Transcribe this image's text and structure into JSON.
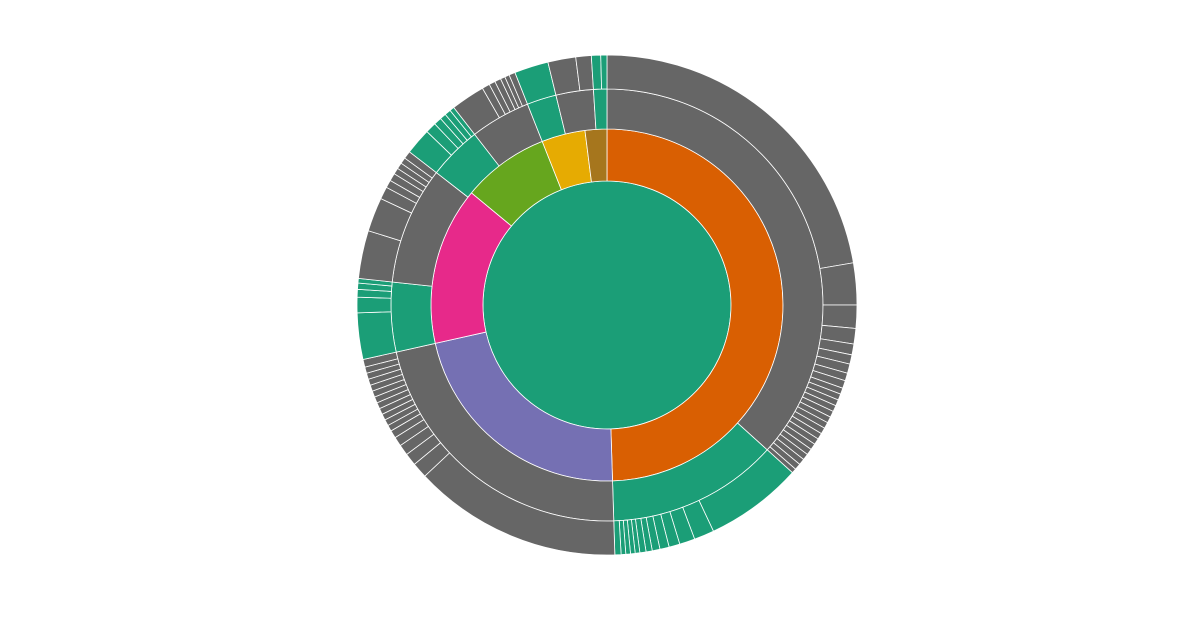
{
  "chart_data": {
    "type": "sunburst",
    "title": "",
    "colors": {
      "center": "#1b9e77",
      "orange": "#d95f02",
      "purple": "#7570b3",
      "pink": "#e7298a",
      "lime": "#66a61e",
      "yellow": "#e6ab02",
      "brown": "#a6761d",
      "gray": "#666666",
      "green": "#1b9e77"
    },
    "levels": [
      [
        {
          "start": 0,
          "end": 100,
          "color": "center"
        }
      ],
      [
        {
          "start": 0.0,
          "end": 49.5,
          "color": "orange"
        },
        {
          "start": 49.5,
          "end": 71.5,
          "color": "purple"
        },
        {
          "start": 71.5,
          "end": 86.0,
          "color": "pink"
        },
        {
          "start": 86.0,
          "end": 94.0,
          "color": "lime"
        },
        {
          "start": 94.0,
          "end": 98.0,
          "color": "yellow"
        },
        {
          "start": 98.0,
          "end": 100.0,
          "color": "brown"
        }
      ],
      [
        {
          "start": 0.0,
          "end": 36.7,
          "color": "gray"
        },
        {
          "start": 36.7,
          "end": 49.5,
          "color": "green"
        },
        {
          "start": 49.5,
          "end": 71.5,
          "color": "gray"
        },
        {
          "start": 71.5,
          "end": 76.7,
          "color": "green"
        },
        {
          "start": 76.7,
          "end": 85.5,
          "color": "gray"
        },
        {
          "start": 85.5,
          "end": 89.5,
          "color": "green"
        },
        {
          "start": 89.5,
          "end": 94.0,
          "color": "gray"
        },
        {
          "start": 94.0,
          "end": 96.2,
          "color": "green"
        },
        {
          "start": 96.2,
          "end": 99.0,
          "color": "gray"
        },
        {
          "start": 99.0,
          "end": 100.0,
          "color": "green"
        }
      ],
      [
        {
          "start": 0.0,
          "end": 22.3,
          "color": "gray"
        },
        {
          "start": 22.3,
          "end": 25.0,
          "color": "gray"
        },
        {
          "start": 25.0,
          "end": 26.5,
          "color": "gray"
        },
        {
          "start": 26.5,
          "end": 27.5,
          "color": "gray"
        },
        {
          "start": 27.5,
          "end": 28.2,
          "color": "gray"
        },
        {
          "start": 28.2,
          "end": 28.8,
          "color": "gray"
        },
        {
          "start": 28.8,
          "end": 29.4,
          "color": "gray"
        },
        {
          "start": 29.4,
          "end": 29.9,
          "color": "gray"
        },
        {
          "start": 29.9,
          "end": 30.4,
          "color": "gray"
        },
        {
          "start": 30.4,
          "end": 30.8,
          "color": "gray"
        },
        {
          "start": 30.8,
          "end": 31.2,
          "color": "gray"
        },
        {
          "start": 31.2,
          "end": 31.6,
          "color": "gray"
        },
        {
          "start": 31.6,
          "end": 32.0,
          "color": "gray"
        },
        {
          "start": 32.0,
          "end": 32.4,
          "color": "gray"
        },
        {
          "start": 32.4,
          "end": 32.8,
          "color": "gray"
        },
        {
          "start": 32.8,
          "end": 33.2,
          "color": "gray"
        },
        {
          "start": 33.2,
          "end": 33.6,
          "color": "gray"
        },
        {
          "start": 33.6,
          "end": 34.0,
          "color": "gray"
        },
        {
          "start": 34.0,
          "end": 34.4,
          "color": "gray"
        },
        {
          "start": 34.4,
          "end": 34.8,
          "color": "gray"
        },
        {
          "start": 34.8,
          "end": 35.2,
          "color": "gray"
        },
        {
          "start": 35.2,
          "end": 35.6,
          "color": "gray"
        },
        {
          "start": 35.6,
          "end": 36.0,
          "color": "gray"
        },
        {
          "start": 36.0,
          "end": 36.4,
          "color": "gray"
        },
        {
          "start": 36.4,
          "end": 36.7,
          "color": "gray"
        },
        {
          "start": 36.7,
          "end": 43.0,
          "color": "green"
        },
        {
          "start": 43.0,
          "end": 44.3,
          "color": "green"
        },
        {
          "start": 44.3,
          "end": 45.3,
          "color": "green"
        },
        {
          "start": 45.3,
          "end": 46.0,
          "color": "green"
        },
        {
          "start": 46.0,
          "end": 46.6,
          "color": "green"
        },
        {
          "start": 46.6,
          "end": 47.1,
          "color": "green"
        },
        {
          "start": 47.1,
          "end": 47.5,
          "color": "green"
        },
        {
          "start": 47.5,
          "end": 47.9,
          "color": "green"
        },
        {
          "start": 47.9,
          "end": 48.2,
          "color": "green"
        },
        {
          "start": 48.2,
          "end": 48.5,
          "color": "green"
        },
        {
          "start": 48.5,
          "end": 48.8,
          "color": "green"
        },
        {
          "start": 48.8,
          "end": 49.1,
          "color": "green"
        },
        {
          "start": 49.1,
          "end": 49.5,
          "color": "green"
        },
        {
          "start": 49.5,
          "end": 63.0,
          "color": "gray"
        },
        {
          "start": 63.0,
          "end": 64.0,
          "color": "gray"
        },
        {
          "start": 64.0,
          "end": 64.8,
          "color": "gray"
        },
        {
          "start": 64.8,
          "end": 65.5,
          "color": "gray"
        },
        {
          "start": 65.5,
          "end": 66.1,
          "color": "gray"
        },
        {
          "start": 66.1,
          "end": 66.6,
          "color": "gray"
        },
        {
          "start": 66.6,
          "end": 67.0,
          "color": "gray"
        },
        {
          "start": 67.0,
          "end": 67.4,
          "color": "gray"
        },
        {
          "start": 67.4,
          "end": 67.8,
          "color": "gray"
        },
        {
          "start": 67.8,
          "end": 68.2,
          "color": "gray"
        },
        {
          "start": 68.2,
          "end": 68.6,
          "color": "gray"
        },
        {
          "start": 68.6,
          "end": 69.0,
          "color": "gray"
        },
        {
          "start": 69.0,
          "end": 69.4,
          "color": "gray"
        },
        {
          "start": 69.4,
          "end": 69.8,
          "color": "gray"
        },
        {
          "start": 69.8,
          "end": 70.2,
          "color": "gray"
        },
        {
          "start": 70.2,
          "end": 70.6,
          "color": "gray"
        },
        {
          "start": 70.6,
          "end": 71.0,
          "color": "gray"
        },
        {
          "start": 71.0,
          "end": 71.5,
          "color": "gray"
        },
        {
          "start": 71.5,
          "end": 74.5,
          "color": "green"
        },
        {
          "start": 74.5,
          "end": 75.5,
          "color": "green"
        },
        {
          "start": 75.5,
          "end": 76.0,
          "color": "green"
        },
        {
          "start": 76.0,
          "end": 76.4,
          "color": "green"
        },
        {
          "start": 76.4,
          "end": 76.7,
          "color": "green"
        },
        {
          "start": 76.7,
          "end": 79.8,
          "color": "gray"
        },
        {
          "start": 79.8,
          "end": 82.0,
          "color": "gray"
        },
        {
          "start": 82.0,
          "end": 82.8,
          "color": "gray"
        },
        {
          "start": 82.8,
          "end": 83.3,
          "color": "gray"
        },
        {
          "start": 83.3,
          "end": 83.8,
          "color": "gray"
        },
        {
          "start": 83.8,
          "end": 84.2,
          "color": "gray"
        },
        {
          "start": 84.2,
          "end": 84.6,
          "color": "gray"
        },
        {
          "start": 84.6,
          "end": 85.0,
          "color": "gray"
        },
        {
          "start": 85.0,
          "end": 85.5,
          "color": "gray"
        },
        {
          "start": 85.5,
          "end": 87.2,
          "color": "green"
        },
        {
          "start": 87.2,
          "end": 87.9,
          "color": "green"
        },
        {
          "start": 87.9,
          "end": 88.4,
          "color": "green"
        },
        {
          "start": 88.4,
          "end": 88.8,
          "color": "green"
        },
        {
          "start": 88.8,
          "end": 89.2,
          "color": "green"
        },
        {
          "start": 89.2,
          "end": 89.5,
          "color": "green"
        },
        {
          "start": 89.5,
          "end": 91.7,
          "color": "gray"
        },
        {
          "start": 91.7,
          "end": 92.2,
          "color": "gray"
        },
        {
          "start": 92.2,
          "end": 92.6,
          "color": "gray"
        },
        {
          "start": 92.6,
          "end": 93.0,
          "color": "gray"
        },
        {
          "start": 93.0,
          "end": 93.3,
          "color": "gray"
        },
        {
          "start": 93.3,
          "end": 93.6,
          "color": "gray"
        },
        {
          "start": 93.6,
          "end": 94.0,
          "color": "gray"
        },
        {
          "start": 94.0,
          "end": 96.2,
          "color": "green"
        },
        {
          "start": 96.2,
          "end": 98.0,
          "color": "gray"
        },
        {
          "start": 98.0,
          "end": 99.0,
          "color": "gray"
        },
        {
          "start": 99.0,
          "end": 99.6,
          "color": "green"
        },
        {
          "start": 99.6,
          "end": 100.0,
          "color": "green"
        }
      ]
    ]
  }
}
